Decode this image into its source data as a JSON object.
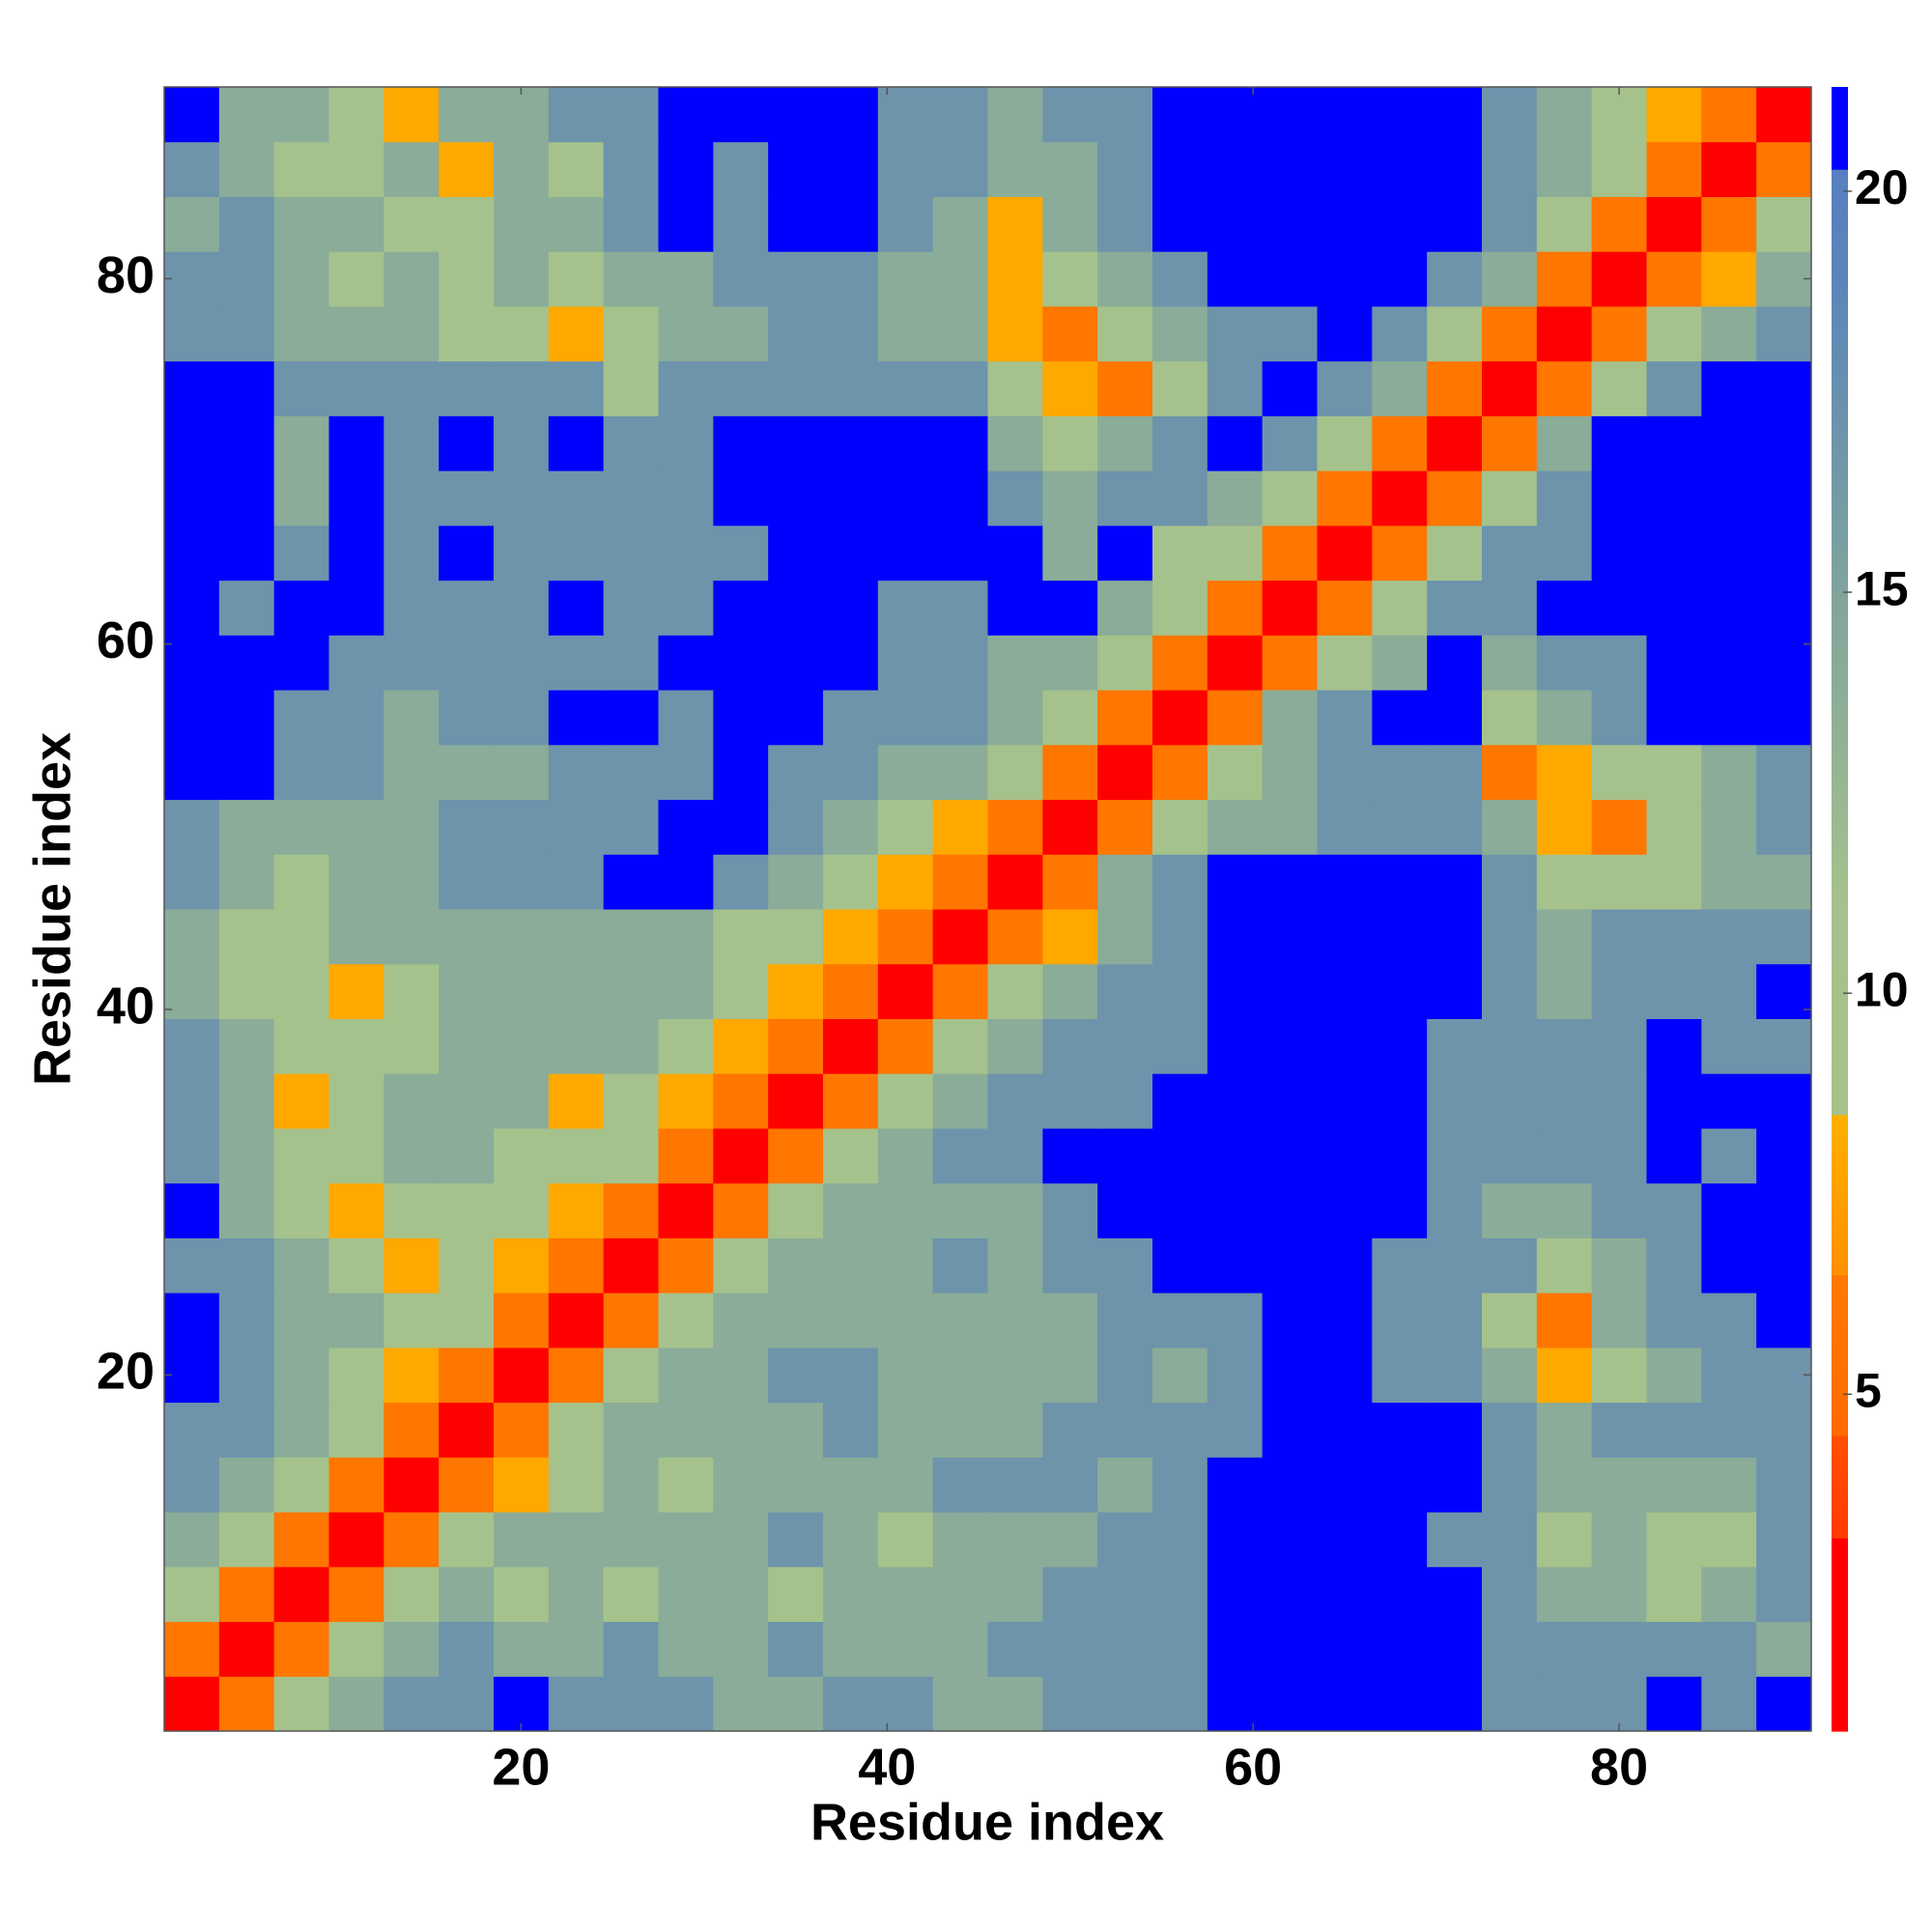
{
  "chart_data": {
    "type": "heatmap",
    "xlabel": "Residue index",
    "ylabel": "Residue index",
    "xlim": [
      0.5,
      90.5
    ],
    "ylim": [
      0.5,
      90.5
    ],
    "xticks": [
      20,
      40,
      60,
      80
    ],
    "yticks": [
      20,
      40,
      60,
      80
    ],
    "xbins": [
      0.5,
      3.5,
      6.5,
      9.5,
      12.5,
      15.5,
      18.5,
      21.5,
      24.5,
      27.5,
      30.5,
      33.5,
      36.5,
      39.5,
      42.5,
      45.5,
      48.5,
      51.5,
      54.5,
      57.5,
      60.5,
      63.5,
      66.5,
      69.5,
      72.5,
      75.5,
      78.5,
      81.5,
      84.5,
      87.5,
      90.5
    ],
    "ybins": [
      0.5,
      3.5,
      6.5,
      9.5,
      12.5,
      15.5,
      18.5,
      21.5,
      24.5,
      27.5,
      30.5,
      33.5,
      36.5,
      39.5,
      42.5,
      45.5,
      48.5,
      51.5,
      54.5,
      57.5,
      60.5,
      63.5,
      66.5,
      69.5,
      72.5,
      75.5,
      78.5,
      81.5,
      84.5,
      87.5,
      90.5
    ],
    "z": [
      [
        3,
        6,
        11,
        14,
        17,
        17,
        22,
        17,
        17,
        17,
        14,
        14,
        17,
        17,
        14,
        14,
        17,
        17,
        17,
        22,
        22,
        22,
        22,
        22,
        17,
        17,
        17,
        22,
        17,
        22
      ],
      [
        6,
        3,
        6,
        11,
        14,
        17,
        14,
        14,
        17,
        14,
        14,
        17,
        14,
        14,
        14,
        17,
        17,
        17,
        17,
        22,
        22,
        22,
        22,
        22,
        17,
        17,
        17,
        17,
        17,
        14
      ],
      [
        11,
        6,
        3,
        6,
        11,
        14,
        11,
        14,
        11,
        14,
        14,
        11,
        14,
        14,
        14,
        14,
        17,
        17,
        17,
        22,
        22,
        22,
        22,
        22,
        17,
        14,
        14,
        11,
        14,
        17
      ],
      [
        14,
        11,
        6,
        3,
        6,
        11,
        14,
        14,
        14,
        14,
        14,
        17,
        14,
        11,
        14,
        14,
        14,
        17,
        17,
        22,
        22,
        22,
        22,
        17,
        17,
        11,
        14,
        11,
        11,
        17
      ],
      [
        17,
        14,
        11,
        6,
        3,
        6,
        8,
        11,
        14,
        11,
        14,
        14,
        14,
        14,
        17,
        17,
        17,
        14,
        17,
        22,
        22,
        22,
        22,
        22,
        17,
        14,
        14,
        14,
        14,
        17
      ],
      [
        17,
        17,
        14,
        11,
        6,
        3,
        6,
        11,
        14,
        14,
        14,
        14,
        17,
        14,
        14,
        14,
        17,
        17,
        17,
        17,
        22,
        22,
        22,
        22,
        17,
        14,
        17,
        17,
        17,
        17
      ],
      [
        22,
        17,
        14,
        11,
        8,
        6,
        3,
        6,
        11,
        14,
        14,
        17,
        17,
        14,
        14,
        14,
        14,
        17,
        14,
        17,
        22,
        22,
        17,
        17,
        14,
        8,
        11,
        14,
        17,
        17
      ],
      [
        22,
        17,
        14,
        14,
        11,
        11,
        6,
        3,
        6,
        11,
        14,
        14,
        14,
        14,
        14,
        14,
        14,
        17,
        17,
        17,
        22,
        22,
        17,
        17,
        11,
        6,
        14,
        17,
        17,
        22
      ],
      [
        17,
        17,
        14,
        11,
        8,
        11,
        8,
        6,
        3,
        6,
        11,
        14,
        14,
        14,
        17,
        14,
        17,
        17,
        22,
        22,
        22,
        22,
        17,
        17,
        17,
        11,
        14,
        17,
        22,
        22
      ],
      [
        22,
        14,
        11,
        8,
        11,
        11,
        11,
        8,
        6,
        3,
        6,
        11,
        14,
        14,
        14,
        14,
        17,
        22,
        22,
        22,
        22,
        22,
        22,
        17,
        14,
        14,
        17,
        17,
        22,
        22
      ],
      [
        17,
        14,
        11,
        11,
        14,
        14,
        11,
        11,
        11,
        6,
        3,
        6,
        11,
        14,
        17,
        17,
        22,
        22,
        22,
        22,
        22,
        22,
        22,
        17,
        17,
        17,
        17,
        22,
        17,
        22
      ],
      [
        17,
        14,
        8,
        11,
        14,
        14,
        14,
        8,
        11,
        8,
        6,
        3,
        6,
        11,
        14,
        17,
        17,
        17,
        22,
        22,
        22,
        22,
        22,
        17,
        17,
        17,
        17,
        22,
        22,
        22
      ],
      [
        17,
        14,
        11,
        11,
        11,
        14,
        14,
        14,
        14,
        11,
        8,
        6,
        3,
        6,
        11,
        14,
        17,
        17,
        17,
        22,
        22,
        22,
        22,
        17,
        17,
        17,
        17,
        22,
        17,
        17
      ],
      [
        14,
        11,
        11,
        8,
        11,
        14,
        14,
        14,
        14,
        14,
        11,
        8,
        6,
        3,
        6,
        11,
        14,
        17,
        17,
        22,
        22,
        22,
        22,
        22,
        17,
        14,
        17,
        17,
        17,
        22
      ],
      [
        14,
        11,
        11,
        14,
        14,
        14,
        14,
        14,
        14,
        14,
        11,
        11,
        8,
        6,
        3,
        6,
        8,
        14,
        17,
        22,
        22,
        22,
        22,
        22,
        17,
        14,
        17,
        17,
        17,
        17
      ],
      [
        17,
        14,
        11,
        14,
        14,
        17,
        17,
        17,
        22,
        22,
        17,
        14,
        11,
        8,
        6,
        3,
        6,
        14,
        17,
        22,
        22,
        22,
        22,
        22,
        17,
        11,
        11,
        11,
        14,
        14
      ],
      [
        17,
        14,
        14,
        14,
        14,
        17,
        17,
        17,
        17,
        22,
        22,
        17,
        14,
        11,
        8,
        6,
        3,
        6,
        11,
        14,
        14,
        17,
        17,
        17,
        14,
        8,
        6,
        11,
        14,
        17
      ],
      [
        22,
        22,
        17,
        17,
        14,
        14,
        14,
        17,
        17,
        17,
        22,
        17,
        17,
        14,
        14,
        11,
        6,
        3,
        6,
        11,
        14,
        17,
        17,
        17,
        6,
        8,
        11,
        11,
        14,
        17
      ],
      [
        22,
        22,
        17,
        17,
        14,
        17,
        17,
        22,
        22,
        17,
        22,
        22,
        17,
        17,
        17,
        14,
        11,
        6,
        3,
        6,
        14,
        17,
        22,
        22,
        11,
        14,
        17,
        22,
        22,
        22
      ],
      [
        22,
        22,
        22,
        17,
        17,
        17,
        17,
        17,
        17,
        22,
        22,
        22,
        22,
        17,
        17,
        14,
        14,
        11,
        6,
        3,
        6,
        11,
        14,
        22,
        14,
        17,
        17,
        22,
        22,
        22
      ],
      [
        22,
        17,
        22,
        22,
        17,
        17,
        17,
        22,
        17,
        17,
        22,
        22,
        22,
        17,
        17,
        22,
        22,
        14,
        11,
        6,
        3,
        6,
        11,
        17,
        17,
        22,
        22,
        22,
        22,
        22
      ],
      [
        22,
        22,
        17,
        22,
        17,
        22,
        17,
        17,
        17,
        17,
        17,
        22,
        22,
        22,
        22,
        22,
        14,
        22,
        11,
        11,
        6,
        3,
        6,
        11,
        17,
        17,
        22,
        22,
        22,
        22
      ],
      [
        22,
        22,
        14,
        22,
        17,
        17,
        17,
        17,
        17,
        17,
        22,
        22,
        22,
        22,
        22,
        17,
        14,
        17,
        17,
        14,
        11,
        6,
        3,
        6,
        11,
        17,
        22,
        22,
        22,
        22
      ],
      [
        22,
        22,
        14,
        22,
        17,
        22,
        17,
        22,
        17,
        17,
        22,
        22,
        22,
        22,
        22,
        14,
        11,
        14,
        17,
        22,
        17,
        11,
        6,
        3,
        6,
        14,
        22,
        22,
        22,
        22
      ],
      [
        22,
        22,
        17,
        17,
        17,
        17,
        17,
        17,
        11,
        17,
        17,
        17,
        17,
        17,
        17,
        11,
        8,
        6,
        11,
        17,
        22,
        17,
        14,
        6,
        3,
        6,
        11,
        17,
        22,
        22
      ],
      [
        17,
        17,
        14,
        14,
        14,
        11,
        11,
        8,
        11,
        14,
        14,
        17,
        17,
        14,
        14,
        8,
        6,
        11,
        14,
        17,
        17,
        22,
        17,
        11,
        6,
        3,
        6,
        11,
        14,
        17
      ],
      [
        17,
        17,
        14,
        11,
        14,
        11,
        14,
        11,
        14,
        14,
        17,
        17,
        17,
        14,
        14,
        8,
        11,
        14,
        17,
        22,
        22,
        22,
        22,
        17,
        14,
        6,
        3,
        6,
        8,
        14
      ],
      [
        14,
        17,
        14,
        14,
        11,
        11,
        14,
        14,
        17,
        22,
        17,
        22,
        22,
        17,
        14,
        8,
        14,
        17,
        22,
        22,
        22,
        22,
        22,
        22,
        17,
        11,
        6,
        3,
        6,
        11
      ],
      [
        17,
        14,
        11,
        11,
        14,
        8,
        14,
        11,
        17,
        22,
        17,
        22,
        22,
        17,
        17,
        14,
        14,
        17,
        22,
        22,
        22,
        22,
        22,
        22,
        17,
        14,
        11,
        6,
        3,
        6
      ],
      [
        22,
        14,
        14,
        11,
        8,
        14,
        14,
        17,
        17,
        22,
        22,
        22,
        22,
        17,
        17,
        14,
        17,
        17,
        22,
        22,
        22,
        22,
        22,
        22,
        17,
        14,
        11,
        8,
        6,
        3
      ]
    ],
    "colorbar": {
      "clim": [
        0.8,
        21.3
      ],
      "ticks": [
        5,
        10,
        15,
        20
      ],
      "colorscale": [
        [
          0.8,
          "#ff0000"
        ],
        [
          3.2,
          "#ff0000"
        ],
        [
          3.2,
          "#ff3a00"
        ],
        [
          4.5,
          "#ff5000"
        ],
        [
          4.5,
          "#ff6a00"
        ],
        [
          6.5,
          "#ff7a00"
        ],
        [
          6.5,
          "#ff9000"
        ],
        [
          8.5,
          "#ffb000"
        ],
        [
          8.5,
          "#a8c08a"
        ],
        [
          11,
          "#a6c28c"
        ],
        [
          15,
          "#80a49c"
        ],
        [
          19,
          "#5a84ba"
        ],
        [
          20.3,
          "#5580c0"
        ],
        [
          20.3,
          "#0000ff"
        ],
        [
          21.3,
          "#0000ff"
        ]
      ]
    }
  }
}
